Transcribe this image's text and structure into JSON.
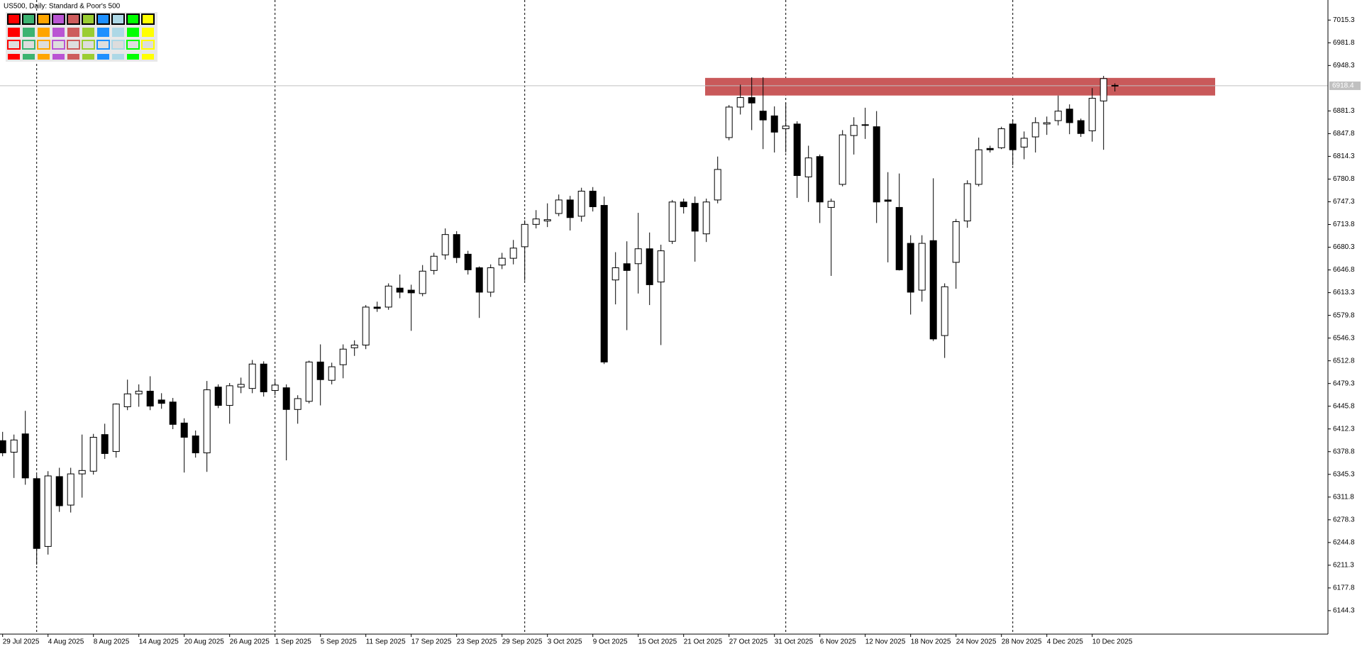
{
  "chart_data": {
    "type": "candlestick",
    "title": "US500, Daily:  Standard & Poor's 500",
    "categories": [
      "29 Jul 2025",
      null,
      null,
      null,
      "4 Aug 2025",
      null,
      null,
      null,
      "8 Aug 2025",
      null,
      null,
      null,
      "14 Aug 2025",
      null,
      null,
      null,
      "20 Aug 2025",
      null,
      null,
      null,
      "26 Aug 2025",
      null,
      null,
      null,
      "1 Sep 2025",
      null,
      null,
      null,
      "5 Sep 2025",
      null,
      null,
      null,
      "11 Sep 2025",
      null,
      null,
      null,
      "17 Sep 2025",
      null,
      null,
      null,
      "23 Sep 2025",
      null,
      null,
      null,
      "29 Sep 2025",
      null,
      null,
      null,
      "3 Oct 2025",
      null,
      null,
      null,
      "9 Oct 2025",
      null,
      null,
      null,
      "15 Oct 2025",
      null,
      null,
      null,
      "21 Oct 2025",
      null,
      null,
      null,
      "27 Oct 2025",
      null,
      null,
      null,
      "31 Oct 2025",
      null,
      null,
      null,
      "6 Nov 2025",
      null,
      null,
      null,
      "12 Nov 2025",
      null,
      null,
      null,
      "18 Nov 2025",
      null,
      null,
      null,
      "24 Nov 2025",
      null,
      null,
      null,
      "28 Nov 2025",
      null,
      null,
      null,
      "4 Dec 2025",
      null,
      null,
      null,
      "10 Dec 2025",
      null,
      null
    ],
    "open": [
      6395,
      6378,
      6405,
      6339,
      6239,
      6342,
      6300,
      6346,
      6350,
      6404,
      6379,
      6445,
      6464,
      6468,
      6455,
      6452,
      6421,
      6402,
      6377,
      6474,
      6447,
      6474,
      6472,
      6508,
      6469,
      6473,
      6441,
      6453,
      6511,
      6484,
      6507,
      6532,
      6536,
      6592,
      6592,
      6620,
      6617,
      6612,
      6646,
      6669,
      6699,
      6670,
      6650,
      6614,
      6654,
      6664,
      6681,
      6714,
      6719,
      6730,
      6750,
      6726,
      6763,
      6742,
      6632,
      6656,
      6656,
      6678,
      6629,
      6689,
      6747,
      6745,
      6700,
      6750,
      6842,
      6887,
      6901,
      6881,
      6874,
      6855,
      6862,
      6784,
      6814,
      6739,
      6773,
      6845,
      6861,
      6858,
      6750,
      6739,
      6686,
      6617,
      6690,
      6550,
      6658,
      6719,
      6773,
      6826,
      6827,
      6862,
      6828,
      6843,
      6862,
      6867,
      6884,
      6867,
      6852,
      6896,
      6919
    ],
    "high": [
      6408,
      6404,
      6439,
      6345,
      6350,
      6355,
      6355,
      6404,
      6405,
      6420,
      6450,
      6485,
      6478,
      6490,
      6465,
      6458,
      6428,
      6410,
      6483,
      6478,
      6480,
      6488,
      6514,
      6512,
      6483,
      6478,
      6462,
      6513,
      6537,
      6510,
      6537,
      6543,
      6595,
      6600,
      6627,
      6640,
      6625,
      6654,
      6672,
      6708,
      6704,
      6675,
      6652,
      6655,
      6672,
      6691,
      6720,
      6735,
      6745,
      6758,
      6756,
      6768,
      6769,
      6755,
      6673,
      6689,
      6731,
      6702,
      6684,
      6750,
      6752,
      6755,
      6752,
      6814,
      6890,
      6920,
      6931,
      6931,
      6888,
      6893,
      6866,
      6830,
      6817,
      6752,
      6853,
      6872,
      6886,
      6881,
      6791,
      6789,
      6698,
      6698,
      6782,
      6627,
      6722,
      6779,
      6842,
      6830,
      6858,
      6868,
      6851,
      6872,
      6873,
      6904,
      6891,
      6870,
      6915,
      6933,
      6922
    ],
    "low": [
      6372,
      6340,
      6330,
      6212,
      6227,
      6290,
      6289,
      6311,
      6345,
      6368,
      6370,
      6440,
      6445,
      6440,
      6442,
      6412,
      6348,
      6370,
      6349,
      6443,
      6420,
      6465,
      6465,
      6460,
      6462,
      6366,
      6420,
      6450,
      6447,
      6478,
      6487,
      6520,
      6530,
      6585,
      6588,
      6605,
      6557,
      6608,
      6640,
      6662,
      6657,
      6640,
      6576,
      6607,
      6648,
      6655,
      6631,
      6708,
      6710,
      6726,
      6705,
      6718,
      6733,
      6508,
      6596,
      6558,
      6612,
      6595,
      6536,
      6685,
      6730,
      6659,
      6688,
      6745,
      6838,
      6876,
      6853,
      6825,
      6820,
      6820,
      6753,
      6747,
      6716,
      6638,
      6770,
      6817,
      6840,
      6716,
      6658,
      6646,
      6581,
      6600,
      6542,
      6517,
      6619,
      6709,
      6770,
      6820,
      6825,
      6801,
      6810,
      6820,
      6846,
      6860,
      6847,
      6843,
      6836,
      6824,
      6910
    ],
    "close": [
      6377,
      6396,
      6340,
      6236,
      6343,
      6299,
      6346,
      6351,
      6400,
      6376,
      6449,
      6464,
      6468,
      6446,
      6450,
      6419,
      6400,
      6377,
      6470,
      6447,
      6476,
      6478,
      6508,
      6467,
      6477,
      6441,
      6457,
      6511,
      6485,
      6504,
      6530,
      6536,
      6592,
      6590,
      6623,
      6614,
      6613,
      6645,
      6667,
      6699,
      6665,
      6647,
      6614,
      6650,
      6664,
      6679,
      6714,
      6722,
      6721,
      6750,
      6724,
      6763,
      6740,
      6511,
      6650,
      6646,
      6678,
      6625,
      6675,
      6747,
      6740,
      6704,
      6747,
      6795,
      6887,
      6901,
      6893,
      6868,
      6850,
      6859,
      6786,
      6812,
      6747,
      6748,
      6846,
      6860,
      6860,
      6747,
      6748,
      6647,
      6614,
      6686,
      6545,
      6622,
      6718,
      6774,
      6824,
      6824,
      6855,
      6824,
      6841,
      6864,
      6864,
      6881,
      6864,
      6848,
      6900,
      6929,
      6918.4
    ],
    "up_color": "#ffffff",
    "down_color": "#000000",
    "zone": {
      "low": 6904,
      "high": 6930,
      "color": "#c9595a"
    },
    "last_price": 6918.4,
    "ylim": [
      6109.7,
      7044.9
    ],
    "yticks": [
      6144.3,
      6177.8,
      6211.3,
      6244.8,
      6278.3,
      6311.8,
      6345.3,
      6378.8,
      6412.3,
      6445.8,
      6479.3,
      6512.8,
      6546.3,
      6579.8,
      6613.3,
      6646.8,
      6680.3,
      6713.8,
      6747.3,
      6780.8,
      6814.3,
      6847.8,
      6881.3,
      6948.3,
      6981.8,
      7015.3
    ]
  }
}
